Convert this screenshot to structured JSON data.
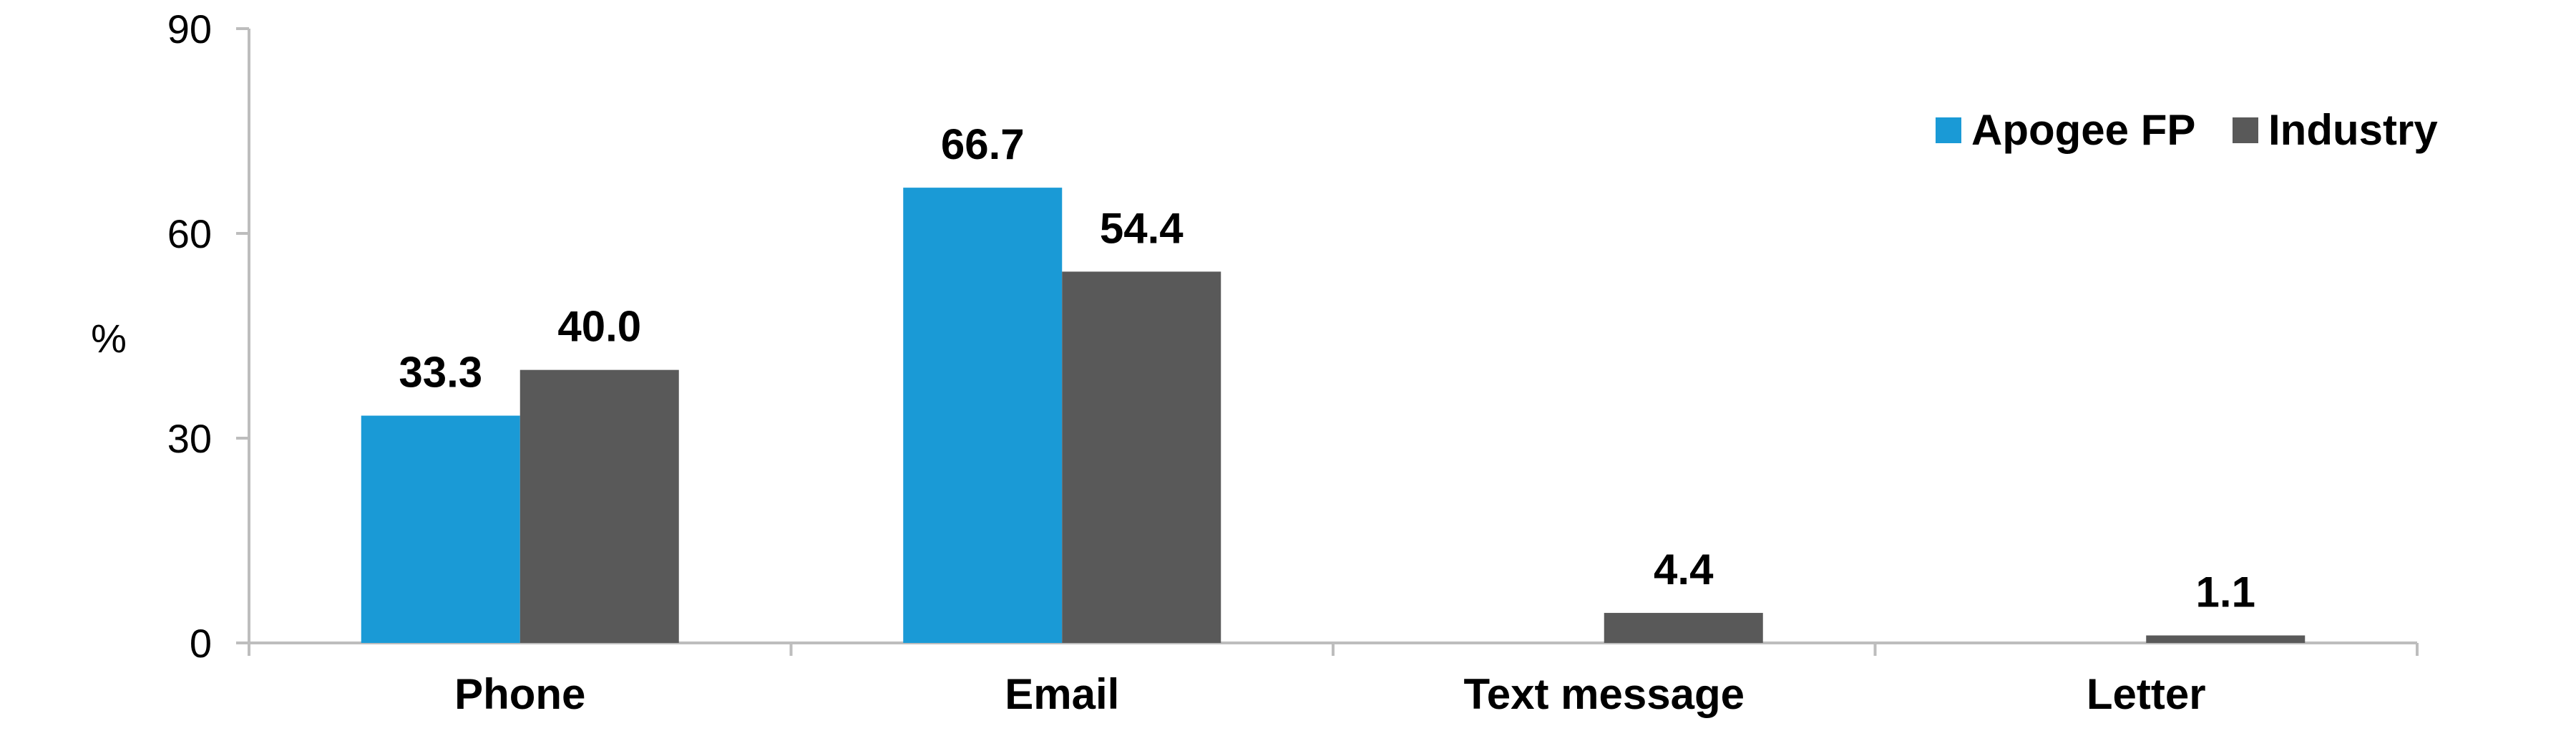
{
  "chart_data": {
    "type": "bar",
    "categories": [
      "Phone",
      "Email",
      "Text message",
      "Letter"
    ],
    "series": [
      {
        "name": "Apogee FP",
        "color": "#1a9ad6",
        "values": [
          33.3,
          66.7,
          null,
          null
        ],
        "labels": [
          "33.3",
          "66.7",
          "",
          ""
        ]
      },
      {
        "name": "Industry",
        "color": "#595959",
        "values": [
          40.0,
          54.4,
          4.4,
          1.1
        ],
        "labels": [
          "40.0",
          "54.4",
          "4.4",
          "1.1"
        ]
      }
    ],
    "ylabel": "%",
    "ylim": [
      0,
      90
    ],
    "yticks": [
      "0",
      "30",
      "60",
      "90"
    ],
    "grid": false,
    "legend_position": "top-right"
  }
}
